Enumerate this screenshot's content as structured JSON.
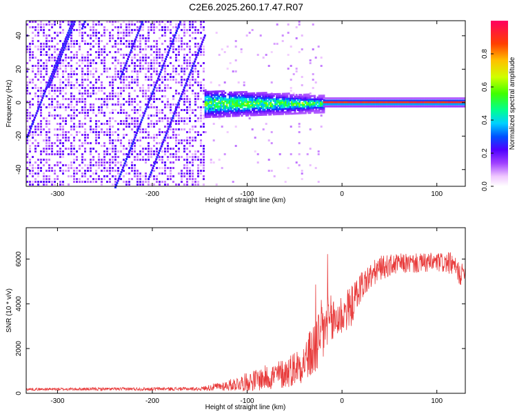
{
  "title": "C2E6.2025.260.17.47.R07",
  "colors": {
    "snr_line": "#e83a3a",
    "axis": "#000000",
    "background": "#ffffff"
  },
  "chart_data": [
    {
      "type": "heatmap",
      "name": "spectrogram",
      "xlabel": "Height of straight line (km)",
      "ylabel": "Frequency (Hz)",
      "xlim": [
        -333,
        130
      ],
      "ylim": [
        -50,
        49
      ],
      "x_ticks": [
        -300,
        -200,
        -100,
        0,
        100
      ],
      "y_ticks": [
        -40,
        -20,
        0,
        20,
        40
      ],
      "x_tick_labels": [
        "-300",
        "-200",
        "-100",
        "0",
        "100"
      ],
      "y_tick_labels": [
        "-40",
        "-20",
        "0",
        "20",
        "40"
      ],
      "description_segments": [
        {
          "range": [
            -333,
            -145
          ],
          "pattern": "broadband noise across all frequencies",
          "dominant_amplitude": 0.2
        },
        {
          "range": [
            -145,
            -20
          ],
          "pattern": "concentrated band around 0 Hz",
          "band_halfwidth": 5,
          "peak_amplitude": 0.5
        },
        {
          "range": [
            -20,
            130
          ],
          "pattern": "narrow line at ~0.5 Hz",
          "band_halfwidth": 1.5,
          "peak_amplitude": 0.95
        }
      ],
      "colorbar": {
        "label": "Normalized spectral amplitude",
        "range": [
          0,
          1
        ],
        "ticks": [
          0.0,
          0.2,
          0.4,
          0.6,
          0.8
        ],
        "tick_labels": [
          "0.0",
          "0.2",
          "0.4",
          "0.6",
          "0.8"
        ]
      }
    },
    {
      "type": "line",
      "name": "snr",
      "xlabel": "Height of straight line (km)",
      "ylabel": "SNR (10 * v/v)",
      "xlim": [
        -333,
        130
      ],
      "ylim": [
        0,
        7400
      ],
      "x_ticks": [
        -300,
        -200,
        -100,
        0,
        100
      ],
      "y_ticks": [
        0,
        2000,
        4000,
        6000
      ],
      "x_tick_labels": [
        "-300",
        "-200",
        "-100",
        "0",
        "100"
      ],
      "y_tick_labels": [
        "0",
        "2000",
        "4000",
        "6000"
      ],
      "trend": {
        "x": [
          -333,
          -250,
          -150,
          -120,
          -90,
          -60,
          -40,
          -30,
          -20,
          -10,
          0,
          10,
          20,
          40,
          60,
          80,
          100,
          115,
          125,
          130
        ],
        "y": [
          180,
          190,
          200,
          350,
          600,
          900,
          1400,
          1900,
          2800,
          3200,
          3500,
          3900,
          4800,
          5600,
          5800,
          5800,
          5850,
          5800,
          5300,
          5500
        ],
        "amp": [
          60,
          70,
          80,
          250,
          500,
          700,
          900,
          1300,
          1600,
          1200,
          1000,
          900,
          700,
          550,
          450,
          450,
          450,
          500,
          500,
          300
        ]
      }
    }
  ]
}
